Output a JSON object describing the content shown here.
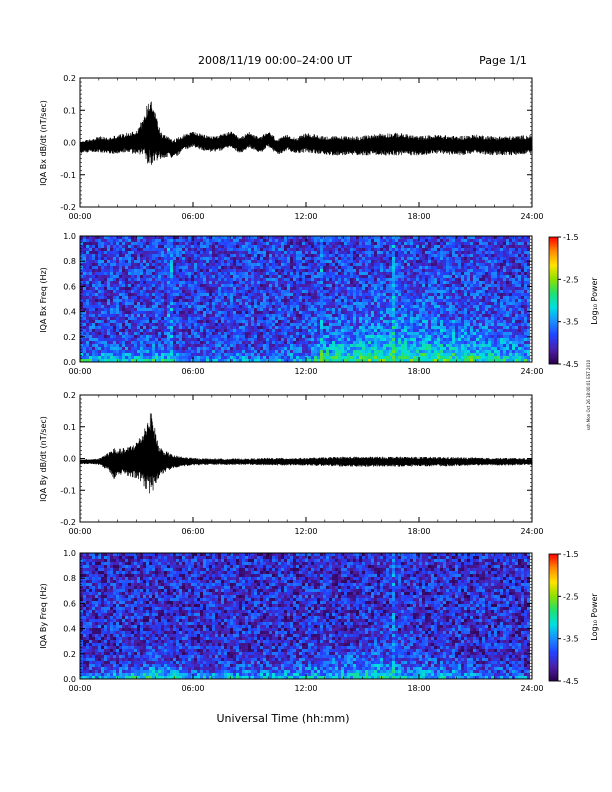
{
  "header": {
    "title": "2008/11/19  00:00–24:00 UT",
    "page": "Page 1/1"
  },
  "footer": {
    "xaxis_title": "Universal Time (hh:mm)"
  },
  "side_stamp": "ssh Mon Oct 26 18:00:01 EST 2010",
  "colors": {
    "trace": "#000000",
    "frame": "#000000",
    "colormap": [
      "#2a004a",
      "#4b1ea8",
      "#2341ff",
      "#1a8cff",
      "#00dfe0",
      "#1fe070",
      "#8ce000",
      "#ffe400",
      "#ff8a00",
      "#ff0000"
    ]
  },
  "chart_data": [
    {
      "type": "line",
      "ylabel": "IQA Bx dB/dt (nT/sec)",
      "xlim": [
        0,
        24
      ],
      "ylim": [
        -0.2,
        0.2
      ],
      "xticks": [
        "00:00",
        "06:00",
        "12:00",
        "18:00",
        "24:00"
      ],
      "yticks": [
        "-0.2",
        "-0.1",
        "0.0",
        "0.1",
        "0.2"
      ],
      "ytick_values": [
        -0.2,
        -0.1,
        0.0,
        0.1,
        0.2
      ],
      "series": [
        {
          "x": [
            0,
            0.5,
            1,
            1.5,
            2,
            2.5,
            3,
            3.4,
            3.6,
            3.8,
            4,
            4.2,
            4.4,
            4.6,
            5,
            5.5,
            6,
            6.5,
            7,
            7.5,
            8,
            8.5,
            9,
            9.5,
            10,
            10.5,
            11,
            11.5,
            12,
            13,
            14,
            15,
            16,
            17,
            18,
            19,
            20,
            21,
            22,
            23,
            24
          ],
          "y_center": [
            -0.015,
            -0.01,
            -0.005,
            -0.01,
            -0.005,
            0.0,
            0.0,
            0.02,
            0.03,
            0.04,
            0.02,
            0.0,
            -0.015,
            -0.01,
            -0.02,
            0.0,
            0.01,
            0.0,
            -0.005,
            0.0,
            0.01,
            -0.01,
            0.01,
            -0.01,
            0.01,
            -0.015,
            0.0,
            -0.01,
            0.0,
            -0.01,
            -0.01,
            -0.01,
            -0.005,
            -0.005,
            -0.01,
            -0.005,
            -0.01,
            -0.005,
            -0.01,
            -0.01,
            -0.005
          ],
          "envelope": [
            0.02,
            0.02,
            0.025,
            0.025,
            0.03,
            0.03,
            0.04,
            0.06,
            0.1,
            0.11,
            0.08,
            0.05,
            0.04,
            0.035,
            0.03,
            0.025,
            0.025,
            0.025,
            0.025,
            0.025,
            0.025,
            0.025,
            0.025,
            0.025,
            0.025,
            0.025,
            0.025,
            0.025,
            0.03,
            0.03,
            0.03,
            0.03,
            0.035,
            0.035,
            0.03,
            0.03,
            0.03,
            0.03,
            0.03,
            0.03,
            0.03
          ]
        }
      ]
    },
    {
      "type": "heatmap",
      "ylabel": "IQA Bx Freq (Hz)",
      "xlim": [
        0,
        24
      ],
      "ylim": [
        0,
        1.0
      ],
      "xticks": [
        "00:00",
        "06:00",
        "12:00",
        "18:00",
        "24:00"
      ],
      "yticks": [
        "0.0",
        "0.2",
        "0.4",
        "0.6",
        "0.8",
        "1.0"
      ],
      "ytick_values": [
        0.0,
        0.2,
        0.4,
        0.6,
        0.8,
        1.0
      ],
      "colorbar": {
        "label": "Log₁₀ Power",
        "range": [
          -4.5,
          -1.5
        ],
        "ticks": [
          "-1.5",
          "-2.5",
          "-3.5",
          "-4.5"
        ],
        "tick_values": [
          -1.5,
          -2.5,
          -3.5,
          -4.5
        ]
      },
      "background_log_power": -3.9,
      "low_freq_enhancement": {
        "times_h": [
          0,
          2,
          4,
          6,
          8,
          10,
          12,
          13,
          14,
          16,
          18,
          20,
          22,
          24
        ],
        "log_power_at_0hz": [
          -2.9,
          -2.9,
          -2.8,
          -3.2,
          -3.3,
          -3.3,
          -3.2,
          -2.8,
          -2.8,
          -2.7,
          -2.8,
          -2.8,
          -2.9,
          -3.0
        ],
        "decay_hz": [
          0.05,
          0.05,
          0.06,
          0.04,
          0.04,
          0.04,
          0.06,
          0.12,
          0.16,
          0.2,
          0.22,
          0.18,
          0.15,
          0.1
        ]
      },
      "vertical_lines_h": [
        4.8,
        12.9,
        16.7
      ]
    },
    {
      "type": "line",
      "ylabel": "IQA By dB/dt (nT/sec)",
      "xlim": [
        0,
        24
      ],
      "ylim": [
        -0.2,
        0.2
      ],
      "xticks": [
        "00:00",
        "06:00",
        "12:00",
        "18:00",
        "24:00"
      ],
      "yticks": [
        "-0.2",
        "-0.1",
        "0.0",
        "0.1",
        "0.2"
      ],
      "ytick_values": [
        -0.2,
        -0.1,
        0.0,
        0.1,
        0.2
      ],
      "series": [
        {
          "x": [
            0,
            0.5,
            1,
            1.5,
            1.8,
            2,
            2.5,
            3,
            3.3,
            3.6,
            3.8,
            4,
            4.2,
            4.5,
            5,
            5.5,
            6,
            7,
            8,
            9,
            10,
            11,
            12,
            13,
            14,
            15,
            16,
            17,
            18,
            19,
            20,
            21,
            22,
            23,
            24
          ],
          "y_center": [
            -0.01,
            -0.01,
            -0.01,
            -0.01,
            -0.015,
            -0.01,
            -0.01,
            -0.005,
            0.0,
            0.01,
            0.02,
            0.0,
            -0.01,
            -0.01,
            -0.01,
            -0.01,
            -0.01,
            -0.01,
            -0.01,
            -0.01,
            -0.01,
            -0.01,
            -0.01,
            -0.01,
            -0.01,
            -0.01,
            -0.01,
            -0.01,
            -0.01,
            -0.01,
            -0.01,
            -0.01,
            -0.01,
            -0.01,
            -0.01
          ],
          "envelope": [
            0.008,
            0.008,
            0.01,
            0.03,
            0.05,
            0.04,
            0.045,
            0.06,
            0.08,
            0.12,
            0.13,
            0.09,
            0.05,
            0.035,
            0.02,
            0.015,
            0.012,
            0.01,
            0.01,
            0.01,
            0.012,
            0.012,
            0.012,
            0.014,
            0.016,
            0.016,
            0.016,
            0.016,
            0.015,
            0.015,
            0.014,
            0.013,
            0.012,
            0.012,
            0.01
          ]
        }
      ]
    },
    {
      "type": "heatmap",
      "ylabel": "IQA By Freq (Hz)",
      "xlim": [
        0,
        24
      ],
      "ylim": [
        0,
        1.0
      ],
      "xticks": [
        "00:00",
        "06:00",
        "12:00",
        "18:00",
        "24:00"
      ],
      "yticks": [
        "0.0",
        "0.2",
        "0.4",
        "0.6",
        "0.8",
        "1.0"
      ],
      "ytick_values": [
        0.0,
        0.2,
        0.4,
        0.6,
        0.8,
        1.0
      ],
      "colorbar": {
        "label": "Log₁₀ Power",
        "range": [
          -4.5,
          -1.5
        ],
        "ticks": [
          "-1.5",
          "-2.5",
          "-3.5",
          "-4.5"
        ],
        "tick_values": [
          -1.5,
          -2.5,
          -3.5,
          -4.5
        ]
      },
      "background_log_power": -4.0,
      "low_freq_enhancement": {
        "times_h": [
          0,
          2,
          4,
          6,
          8,
          10,
          12,
          14,
          16,
          17,
          18,
          20,
          22,
          24
        ],
        "log_power_at_0hz": [
          -3.2,
          -3.0,
          -2.8,
          -3.1,
          -3.1,
          -3.2,
          -3.2,
          -3.1,
          -2.9,
          -3.0,
          -3.1,
          -3.2,
          -3.3,
          -3.5
        ],
        "decay_hz": [
          0.03,
          0.05,
          0.08,
          0.05,
          0.05,
          0.06,
          0.08,
          0.1,
          0.12,
          0.1,
          0.08,
          0.07,
          0.05,
          0.04
        ]
      },
      "vertical_lines_h": [
        16.7
      ]
    }
  ]
}
